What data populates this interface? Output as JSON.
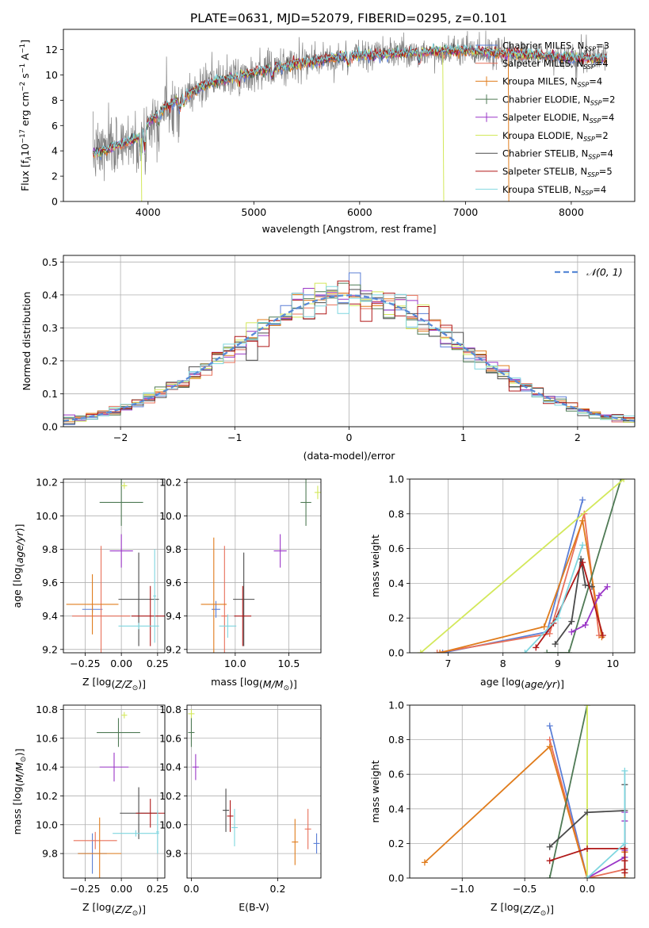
{
  "title": "PLATE=0631, MJD=52079, FIBERID=0295, z=0.101",
  "models": [
    {
      "name": "Chabrier MILES, N",
      "sub": "SSP",
      "n": "=3",
      "color": "#5b7fd6"
    },
    {
      "name": "Salpeter MILES, N",
      "sub": "SSP",
      "n": "=4",
      "color": "#e8705a"
    },
    {
      "name": "Kroupa MILES, N",
      "sub": "SSP",
      "n": "=4",
      "color": "#e07c1c"
    },
    {
      "name": "Chabrier ELODIE, N",
      "sub": "SSP",
      "n": "=2",
      "color": "#4f7a55"
    },
    {
      "name": "Salpeter ELODIE, N",
      "sub": "SSP",
      "n": "=4",
      "color": "#9a36c7"
    },
    {
      "name": "Kroupa ELODIE, N",
      "sub": "SSP",
      "n": "=2",
      "color": "#d3e85a"
    },
    {
      "name": "Chabrier STELIB, N",
      "sub": "SSP",
      "n": "=4",
      "color": "#4a4a4a"
    },
    {
      "name": "Salpeter STELIB, N",
      "sub": "SSP",
      "n": "=5",
      "color": "#b01818"
    },
    {
      "name": "Kroupa STELIB, N",
      "sub": "SSP",
      "n": "=4",
      "color": "#7fd6df"
    }
  ],
  "chart_data": [
    {
      "id": "spectrum",
      "type": "line",
      "xlabel": "wavelength [Angstrom, rest frame]",
      "ylabel_parts": [
        "Flux [f",
        "λ",
        "10",
        "−17",
        " erg cm",
        "−2",
        " s",
        "−1",
        " A",
        "−1",
        "]"
      ],
      "xlim": [
        3200,
        8600
      ],
      "ylim": [
        0,
        13.6
      ],
      "xticks": [
        4000,
        5000,
        6000,
        7000,
        8000
      ],
      "yticks": [
        0,
        2,
        4,
        6,
        8,
        10,
        12
      ],
      "data_continuum": {
        "x": [
          3500,
          3700,
          3900,
          4000,
          4200,
          4400,
          4600,
          4800,
          5000,
          5200,
          5400,
          5600,
          5800,
          6000,
          6200,
          6400,
          6600,
          6800,
          7000,
          7200,
          7400,
          7600,
          7800,
          8000,
          8200,
          8400
        ],
        "y": [
          3.8,
          4.4,
          5.0,
          6.3,
          7.7,
          8.6,
          9.4,
          9.8,
          10.2,
          10.6,
          10.9,
          11.1,
          11.4,
          11.6,
          11.6,
          11.7,
          11.8,
          11.9,
          11.9,
          11.8,
          11.7,
          11.6,
          11.5,
          11.4,
          11.3,
          11.3
        ]
      }
    },
    {
      "id": "residuals",
      "type": "histogram",
      "xlabel": "(data-model)/error",
      "ylabel": "Normed distribution",
      "xlim": [
        -2.5,
        2.5
      ],
      "ylim": [
        0,
        0.52
      ],
      "xticks": [
        -2,
        -1,
        0,
        1,
        2
      ],
      "yticks": [
        0,
        0.1,
        0.2,
        0.3,
        0.4,
        0.5
      ],
      "xtick_labels": [
        "−2",
        "−1",
        "0",
        "1",
        "2"
      ],
      "bin_width": 0.1,
      "gauss_label": "𝒩(0, 1)"
    },
    {
      "id": "age_vs_Z",
      "type": "errorbar",
      "xlabel": "Z [log10(Z/Z⊙)]",
      "ylabel": "age  [log10(age/yr)]",
      "xlim": [
        -0.4,
        0.3
      ],
      "ylim": [
        9.18,
        10.22
      ],
      "xticks": [
        -0.25,
        0,
        0.25
      ],
      "xtick_labels": [
        "−0.25",
        "0.00",
        "0.25"
      ],
      "yticks": [
        9.2,
        9.4,
        9.6,
        9.8,
        10.0,
        10.2
      ],
      "points": [
        {
          "m": 0,
          "x": -0.2,
          "xe": 0.07,
          "y": 9.44,
          "ye": 0
        },
        {
          "m": 1,
          "x": -0.14,
          "xe": 0.2,
          "y": 9.4,
          "ye": 0.42
        },
        {
          "m": 2,
          "x": -0.2,
          "xe": 0.18,
          "y": 9.47,
          "ye": 0.18
        },
        {
          "m": 3,
          "x": 0.0,
          "xe": 0.15,
          "y": 10.08,
          "ye": 0.14
        },
        {
          "m": 4,
          "x": 0.0,
          "xe": 0.08,
          "y": 9.79,
          "ye": 0.1
        },
        {
          "m": 5,
          "x": 0.02,
          "xe": 0.02,
          "y": 10.18,
          "ye": 0
        },
        {
          "m": 6,
          "x": 0.12,
          "xe": 0.14,
          "y": 9.5,
          "ye": 0.28
        },
        {
          "m": 7,
          "x": 0.2,
          "xe": 0.13,
          "y": 9.4,
          "ye": 0.18
        },
        {
          "m": 8,
          "x": 0.12,
          "xe": 0.14,
          "y": 9.34,
          "ye": 0
        },
        {
          "m": 8,
          "x": 0.23,
          "xe": 0.01,
          "y": 9.52,
          "ye": 0.28
        }
      ]
    },
    {
      "id": "age_vs_mass",
      "type": "errorbar",
      "xlabel": "mass [log10(M/M⊙)]",
      "ylabel": "",
      "xlim": [
        9.55,
        10.8
      ],
      "ylim": [
        9.18,
        10.22
      ],
      "xticks": [
        10.0,
        10.5
      ],
      "xtick_labels": [
        "10.0",
        "10.5"
      ],
      "yticks": [
        9.2,
        9.4,
        9.6,
        9.8,
        10.0,
        10.2
      ],
      "points": [
        {
          "m": 0,
          "x": 9.82,
          "xe": 0.04,
          "y": 9.44,
          "ye": 0.05
        },
        {
          "m": 1,
          "x": 9.9,
          "xe": 0.0,
          "y": 9.4,
          "ye": 0.42
        },
        {
          "m": 2,
          "x": 9.8,
          "xe": 0.12,
          "y": 9.47,
          "ye": 0.4
        },
        {
          "m": 3,
          "x": 10.66,
          "xe": 0.05,
          "y": 10.08,
          "ye": 0.14
        },
        {
          "m": 4,
          "x": 10.42,
          "xe": 0.06,
          "y": 9.79,
          "ye": 0.1
        },
        {
          "m": 5,
          "x": 10.77,
          "xe": 0.0,
          "y": 10.14,
          "ye": 0.04
        },
        {
          "m": 6,
          "x": 10.08,
          "xe": 0.1,
          "y": 9.5,
          "ye": 0.28
        },
        {
          "m": 7,
          "x": 10.07,
          "xe": 0.08,
          "y": 9.4,
          "ye": 0.18
        },
        {
          "m": 8,
          "x": 9.93,
          "xe": 0.08,
          "y": 9.34,
          "ye": 0.07
        }
      ]
    },
    {
      "id": "weight_vs_age",
      "type": "line",
      "xlabel": "age  [log10(age/yr)]",
      "ylabel": "mass weight",
      "xlim": [
        6.3,
        10.4
      ],
      "ylim": [
        0,
        1
      ],
      "xticks": [
        7,
        8,
        9,
        10
      ],
      "yticks": [
        0,
        0.2,
        0.4,
        0.6,
        0.8,
        1.0
      ],
      "series": [
        {
          "m": 0,
          "x": [
            6.9,
            8.8,
            9.45
          ],
          "y": [
            0.0,
            0.12,
            0.88
          ]
        },
        {
          "m": 1,
          "x": [
            6.8,
            8.85,
            9.48,
            9.75
          ],
          "y": [
            0.0,
            0.11,
            0.8,
            0.1
          ]
        },
        {
          "m": 2,
          "x": [
            6.85,
            8.75,
            9.45,
            9.8
          ],
          "y": [
            0.0,
            0.15,
            0.76,
            0.09
          ]
        },
        {
          "m": 3,
          "x": [
            8.8,
            9.2,
            10.15
          ],
          "y": [
            0.0,
            0.0,
            1.0
          ]
        },
        {
          "m": 4,
          "x": [
            9.25,
            9.5,
            9.75,
            9.9
          ],
          "y": [
            0.12,
            0.16,
            0.33,
            0.38
          ]
        },
        {
          "m": 5,
          "x": [
            6.5,
            10.2
          ],
          "y": [
            0.0,
            1.0
          ]
        },
        {
          "m": 6,
          "x": [
            8.95,
            9.25,
            9.42,
            9.5,
            9.62
          ],
          "y": [
            0.05,
            0.18,
            0.54,
            0.39,
            0.38
          ]
        },
        {
          "m": 7,
          "x": [
            8.6,
            8.92,
            9.45,
            9.82
          ],
          "y": [
            0.03,
            0.17,
            0.52,
            0.1
          ]
        },
        {
          "m": 8,
          "x": [
            8.4,
            9.0,
            9.45
          ],
          "y": [
            0.0,
            0.2,
            0.62
          ]
        }
      ]
    },
    {
      "id": "mass_vs_Z",
      "type": "errorbar",
      "xlabel": "Z [log10(Z/Z⊙)]",
      "ylabel": "mass [log10(M/M⊙)]",
      "xlim": [
        -0.4,
        0.3
      ],
      "ylim": [
        9.63,
        10.83
      ],
      "xticks": [
        -0.25,
        0,
        0.25
      ],
      "xtick_labels": [
        "−0.25",
        "0.00",
        "0.25"
      ],
      "yticks": [
        9.8,
        10.0,
        10.2,
        10.4,
        10.6,
        10.8
      ],
      "points": [
        {
          "m": 0,
          "x": -0.2,
          "xe": 0.1,
          "y": 9.8,
          "ye": 0.14
        },
        {
          "m": 1,
          "x": -0.18,
          "xe": 0.15,
          "y": 9.89,
          "ye": 0.06
        },
        {
          "m": 2,
          "x": -0.15,
          "xe": 0.15,
          "y": 9.8,
          "ye": 0.25
        },
        {
          "m": 3,
          "x": -0.02,
          "xe": 0.15,
          "y": 10.64,
          "ye": 0.1
        },
        {
          "m": 4,
          "x": -0.05,
          "xe": 0.1,
          "y": 10.4,
          "ye": 0.1
        },
        {
          "m": 5,
          "x": 0.02,
          "xe": 0.02,
          "y": 10.76,
          "ye": 0
        },
        {
          "m": 6,
          "x": 0.12,
          "xe": 0.13,
          "y": 10.08,
          "ye": 0.18
        },
        {
          "m": 7,
          "x": 0.2,
          "xe": 0.1,
          "y": 10.08,
          "ye": 0.1
        },
        {
          "m": 8,
          "x": 0.1,
          "xe": 0.16,
          "y": 9.94,
          "ye": 0
        },
        {
          "m": 8,
          "x": 0.25,
          "xe": 0.01,
          "y": 9.95,
          "ye": 0.15
        }
      ]
    },
    {
      "id": "mass_vs_EBV",
      "type": "errorbar",
      "xlabel": "E(B-V)",
      "ylabel": "",
      "xlim": [
        -0.01,
        0.3
      ],
      "ylim": [
        9.63,
        10.83
      ],
      "xticks": [
        0.0,
        0.2
      ],
      "xtick_labels": [
        "0.0",
        "0.2"
      ],
      "yticks": [
        9.8,
        10.0,
        10.2,
        10.4,
        10.6,
        10.8
      ],
      "points": [
        {
          "m": 0,
          "x": 0.29,
          "xe": 0,
          "y": 9.87,
          "ye": 0.07
        },
        {
          "m": 1,
          "x": 0.27,
          "xe": 0,
          "y": 9.97,
          "ye": 0.14
        },
        {
          "m": 2,
          "x": 0.24,
          "xe": 0,
          "y": 9.88,
          "ye": 0.16
        },
        {
          "m": 3,
          "x": 0.0,
          "xe": 0,
          "y": 10.64,
          "ye": 0.1
        },
        {
          "m": 4,
          "x": 0.01,
          "xe": 0,
          "y": 10.4,
          "ye": 0.09
        },
        {
          "m": 5,
          "x": 0.0,
          "xe": 0,
          "y": 10.77,
          "ye": 0.03
        },
        {
          "m": 6,
          "x": 0.08,
          "xe": 0,
          "y": 10.1,
          "ye": 0.15
        },
        {
          "m": 7,
          "x": 0.09,
          "xe": 0,
          "y": 10.06,
          "ye": 0.11
        },
        {
          "m": 8,
          "x": 0.1,
          "xe": 0,
          "y": 9.98,
          "ye": 0.13
        }
      ]
    },
    {
      "id": "weight_vs_Z",
      "type": "line",
      "xlabel": "Z [log10(Z/Z⊙)]",
      "ylabel": "mass weight",
      "xlim": [
        -1.42,
        0.38
      ],
      "ylim": [
        0,
        1
      ],
      "xticks": [
        -1.0,
        -0.5,
        0.0
      ],
      "xtick_labels": [
        "−1.0",
        "−0.5",
        "0.0"
      ],
      "yticks": [
        0,
        0.2,
        0.4,
        0.6,
        0.8,
        1.0
      ],
      "series": [
        {
          "m": 0,
          "x": [
            -0.3,
            0.0,
            0.3,
            0.3
          ],
          "y": [
            0.88,
            0.0,
            0.0,
            0.12
          ]
        },
        {
          "m": 1,
          "x": [
            -0.3,
            0.0,
            0.3,
            0.3,
            0.3
          ],
          "y": [
            0.8,
            0.0,
            0.05,
            0.1,
            0.15
          ]
        },
        {
          "m": 2,
          "x": [
            -1.3,
            -0.3,
            0.0,
            0.3,
            0.3
          ],
          "y": [
            0.09,
            0.76,
            0.0,
            0.0,
            0.15
          ]
        },
        {
          "m": 3,
          "x": [
            -0.3,
            0.0
          ],
          "y": [
            0.0,
            1.0
          ]
        },
        {
          "m": 4,
          "x": [
            0.0,
            0.3,
            0.3,
            0.3,
            0.3
          ],
          "y": [
            0.0,
            0.12,
            0.16,
            0.33,
            0.38
          ]
        },
        {
          "m": 5,
          "x": [
            0.0,
            0.0
          ],
          "y": [
            0.0,
            1.0
          ]
        },
        {
          "m": 6,
          "x": [
            -0.3,
            0.0,
            0.3,
            0.3,
            0.3
          ],
          "y": [
            0.18,
            0.38,
            0.39,
            0.54,
            0.05
          ]
        },
        {
          "m": 7,
          "x": [
            -0.3,
            0.0,
            0.3,
            0.3,
            0.3,
            0.3
          ],
          "y": [
            0.1,
            0.17,
            0.17,
            0.1,
            0.03,
            0.05
          ]
        },
        {
          "m": 8,
          "x": [
            0.0,
            0.3,
            0.3
          ],
          "y": [
            0.0,
            0.2,
            0.62
          ]
        }
      ]
    }
  ]
}
